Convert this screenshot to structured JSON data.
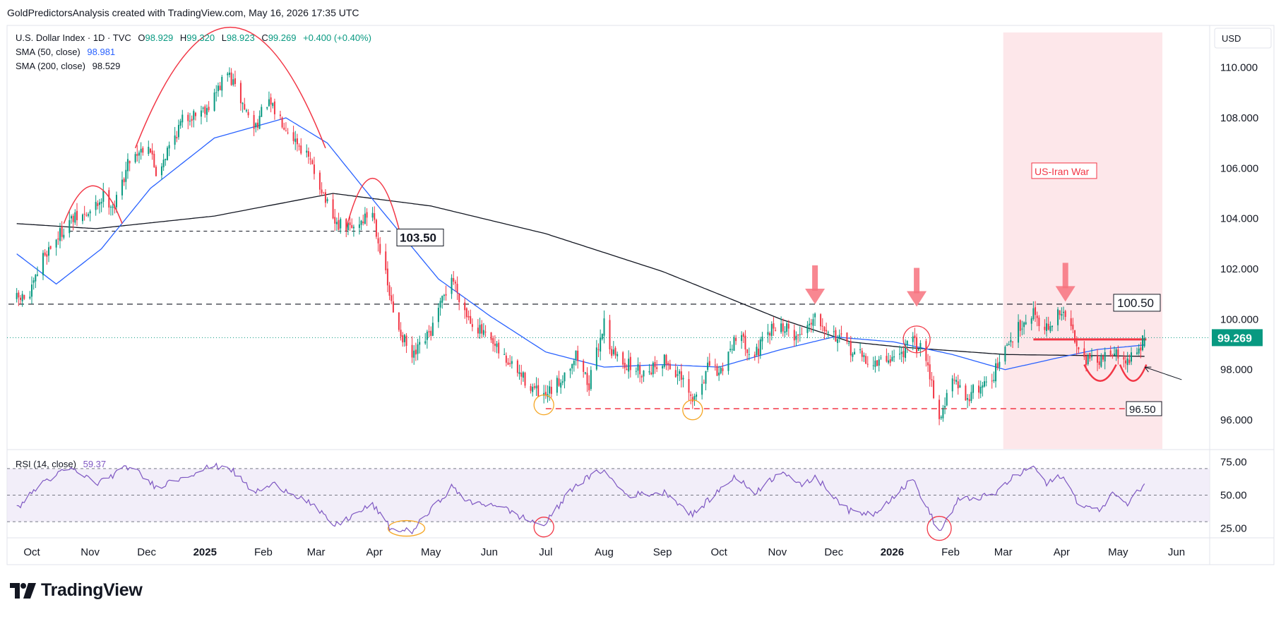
{
  "header": {
    "title": "GoldPredictorsAnalysis created with TradingView.com, May 16, 2026 17:35 UTC"
  },
  "legend": {
    "symbol": "U.S. Dollar Index · 1D · TVC",
    "ohlc": [
      {
        "label": "O",
        "value": "98.929"
      },
      {
        "label": "H",
        "value": "99.320"
      },
      {
        "label": "L",
        "value": "98.923"
      },
      {
        "label": "C",
        "value": "99.269"
      }
    ],
    "change": "+0.400 (+0.40%)",
    "sma50_label": "SMA (50, close)",
    "sma50_value": "98.981",
    "sma200_label": "SMA (200, close)",
    "sma200_value": "98.529",
    "rsi_label": "RSI (14, close)",
    "rsi_value": "59.37"
  },
  "currency_button": "USD",
  "logo_text": "TradingView",
  "annotations": {
    "level_high": "103.50",
    "level_mid": "100.50",
    "level_low": "96.50",
    "event_label": "US-Iran War",
    "current_price": "99.269"
  },
  "colors": {
    "up": "#089981",
    "down": "#f23645",
    "sma50": "#2962ff",
    "sma200": "#131722",
    "rsi": "#7e57c2",
    "arc": "#f23645",
    "marker_orange": "#f5a623",
    "event_zone": "#fde7ea"
  },
  "chart_data": [
    {
      "type": "candlestick",
      "title": "U.S. Dollar Index · 1D · TVC",
      "ylim": [
        95.3,
        111.0
      ],
      "yticks": [
        "110.000",
        "108.000",
        "106.000",
        "104.000",
        "102.000",
        "100.000",
        "98.000",
        "96.000"
      ],
      "x_axis_labels": [
        "Oct",
        "Nov",
        "Dec",
        "2025",
        "Feb",
        "Mar",
        "Apr",
        "May",
        "Jun",
        "Jul",
        "Aug",
        "Sep",
        "Oct",
        "Nov",
        "Dec",
        "2026",
        "Feb",
        "Mar",
        "Apr",
        "May",
        "Jun"
      ],
      "close_anchors": [
        {
          "date": "2024-09-23",
          "close": 100.8
        },
        {
          "date": "2024-09-30",
          "close": 100.9
        },
        {
          "date": "2024-10-07",
          "close": 102.5
        },
        {
          "date": "2024-10-21",
          "close": 103.9
        },
        {
          "date": "2024-11-01",
          "close": 104.2
        },
        {
          "date": "2024-11-08",
          "close": 104.9
        },
        {
          "date": "2024-11-14",
          "close": 104.5
        },
        {
          "date": "2024-11-22",
          "close": 106.4
        },
        {
          "date": "2024-12-02",
          "close": 107.0
        },
        {
          "date": "2024-12-06",
          "close": 105.8
        },
        {
          "date": "2024-12-20",
          "close": 107.9
        },
        {
          "date": "2025-01-03",
          "close": 108.5
        },
        {
          "date": "2025-01-13",
          "close": 109.8
        },
        {
          "date": "2025-01-27",
          "close": 107.6
        },
        {
          "date": "2025-02-03",
          "close": 108.6
        },
        {
          "date": "2025-02-12",
          "close": 107.8
        },
        {
          "date": "2025-02-24",
          "close": 106.5
        },
        {
          "date": "2025-03-04",
          "close": 105.2
        },
        {
          "date": "2025-03-10",
          "close": 103.8
        },
        {
          "date": "2025-03-20",
          "close": 103.6
        },
        {
          "date": "2025-03-31",
          "close": 104.3
        },
        {
          "date": "2025-04-04",
          "close": 102.8
        },
        {
          "date": "2025-04-11",
          "close": 100.2
        },
        {
          "date": "2025-04-21",
          "close": 98.4
        },
        {
          "date": "2025-05-01",
          "close": 99.5
        },
        {
          "date": "2025-05-12",
          "close": 101.7
        },
        {
          "date": "2025-05-20",
          "close": 100.2
        },
        {
          "date": "2025-06-02",
          "close": 99.0
        },
        {
          "date": "2025-06-16",
          "close": 97.9
        },
        {
          "date": "2025-06-30",
          "close": 96.8
        },
        {
          "date": "2025-07-08",
          "close": 97.5
        },
        {
          "date": "2025-07-17",
          "close": 98.6
        },
        {
          "date": "2025-07-24",
          "close": 97.4
        },
        {
          "date": "2025-08-01",
          "close": 99.9
        },
        {
          "date": "2025-08-05",
          "close": 98.7
        },
        {
          "date": "2025-08-13",
          "close": 98.2
        },
        {
          "date": "2025-08-22",
          "close": 97.9
        },
        {
          "date": "2025-09-02",
          "close": 98.4
        },
        {
          "date": "2025-09-10",
          "close": 97.7
        },
        {
          "date": "2025-09-17",
          "close": 96.7
        },
        {
          "date": "2025-09-26",
          "close": 98.2
        },
        {
          "date": "2025-10-01",
          "close": 97.8
        },
        {
          "date": "2025-10-10",
          "close": 99.4
        },
        {
          "date": "2025-10-20",
          "close": 98.6
        },
        {
          "date": "2025-10-31",
          "close": 99.8
        },
        {
          "date": "2025-11-06",
          "close": 99.6
        },
        {
          "date": "2025-11-12",
          "close": 99.3
        },
        {
          "date": "2025-11-21",
          "close": 100.2
        },
        {
          "date": "2025-12-01",
          "close": 99.4
        },
        {
          "date": "2025-12-10",
          "close": 98.8
        },
        {
          "date": "2025-12-22",
          "close": 98.2
        },
        {
          "date": "2026-01-05",
          "close": 98.6
        },
        {
          "date": "2026-01-12",
          "close": 99.1
        },
        {
          "date": "2026-01-19",
          "close": 98.6
        },
        {
          "date": "2026-01-26",
          "close": 96.0
        },
        {
          "date": "2026-02-02",
          "close": 97.6
        },
        {
          "date": "2026-02-09",
          "close": 96.9
        },
        {
          "date": "2026-02-23",
          "close": 97.7
        },
        {
          "date": "2026-03-03",
          "close": 98.9
        },
        {
          "date": "2026-03-10",
          "close": 99.8
        },
        {
          "date": "2026-03-17",
          "close": 100.3
        },
        {
          "date": "2026-03-24",
          "close": 99.6
        },
        {
          "date": "2026-04-01",
          "close": 100.3
        },
        {
          "date": "2026-04-07",
          "close": 99.5
        },
        {
          "date": "2026-04-13",
          "close": 98.5
        },
        {
          "date": "2026-04-20",
          "close": 98.2
        },
        {
          "date": "2026-04-27",
          "close": 98.8
        },
        {
          "date": "2026-05-04",
          "close": 98.3
        },
        {
          "date": "2026-05-11",
          "close": 98.6
        },
        {
          "date": "2026-05-15",
          "close": 99.27
        }
      ],
      "sma50_anchors": [
        {
          "date": "2024-09-23",
          "value": 102.6
        },
        {
          "date": "2024-10-14",
          "value": 101.4
        },
        {
          "date": "2024-11-07",
          "value": 102.8
        },
        {
          "date": "2024-12-03",
          "value": 105.2
        },
        {
          "date": "2025-01-06",
          "value": 107.2
        },
        {
          "date": "2025-02-13",
          "value": 108.0
        },
        {
          "date": "2025-03-07",
          "value": 107.0
        },
        {
          "date": "2025-04-04",
          "value": 104.4
        },
        {
          "date": "2025-05-05",
          "value": 101.6
        },
        {
          "date": "2025-06-02",
          "value": 100.1
        },
        {
          "date": "2025-07-01",
          "value": 98.7
        },
        {
          "date": "2025-08-01",
          "value": 98.1
        },
        {
          "date": "2025-09-01",
          "value": 98.2
        },
        {
          "date": "2025-10-01",
          "value": 98.1
        },
        {
          "date": "2025-11-03",
          "value": 98.8
        },
        {
          "date": "2025-12-01",
          "value": 99.3
        },
        {
          "date": "2026-01-02",
          "value": 99.1
        },
        {
          "date": "2026-02-02",
          "value": 98.6
        },
        {
          "date": "2026-03-02",
          "value": 98.0
        },
        {
          "date": "2026-04-01",
          "value": 98.5
        },
        {
          "date": "2026-04-20",
          "value": 98.8
        },
        {
          "date": "2026-05-15",
          "value": 98.98
        }
      ],
      "sma200_anchors": [
        {
          "date": "2024-09-23",
          "value": 103.8
        },
        {
          "date": "2024-11-04",
          "value": 103.6
        },
        {
          "date": "2025-01-06",
          "value": 104.1
        },
        {
          "date": "2025-03-10",
          "value": 105.0
        },
        {
          "date": "2025-05-01",
          "value": 104.5
        },
        {
          "date": "2025-07-01",
          "value": 103.4
        },
        {
          "date": "2025-09-01",
          "value": 101.9
        },
        {
          "date": "2025-11-03",
          "value": 100.0
        },
        {
          "date": "2025-12-10",
          "value": 99.1
        },
        {
          "date": "2026-01-05",
          "value": 98.9
        },
        {
          "date": "2026-03-02",
          "value": 98.6
        },
        {
          "date": "2026-05-15",
          "value": 98.53
        }
      ]
    },
    {
      "type": "line",
      "title": "RSI (14, close)",
      "ylim": [
        20,
        80
      ],
      "yticks": [
        "75.00",
        "50.00",
        "25.00"
      ],
      "levels": [
        70,
        50,
        30
      ],
      "rsi_anchors": [
        {
          "date": "2024-09-23",
          "value": 40
        },
        {
          "date": "2024-10-07",
          "value": 60
        },
        {
          "date": "2024-10-21",
          "value": 70
        },
        {
          "date": "2024-11-05",
          "value": 59
        },
        {
          "date": "2024-11-22",
          "value": 72
        },
        {
          "date": "2024-12-06",
          "value": 56
        },
        {
          "date": "2025-01-03",
          "value": 71
        },
        {
          "date": "2025-01-13",
          "value": 72
        },
        {
          "date": "2025-01-27",
          "value": 52
        },
        {
          "date": "2025-02-07",
          "value": 58
        },
        {
          "date": "2025-02-24",
          "value": 46
        },
        {
          "date": "2025-03-11",
          "value": 27
        },
        {
          "date": "2025-03-31",
          "value": 43
        },
        {
          "date": "2025-04-10",
          "value": 24
        },
        {
          "date": "2025-04-21",
          "value": 23
        },
        {
          "date": "2025-05-12",
          "value": 56
        },
        {
          "date": "2025-05-22",
          "value": 44
        },
        {
          "date": "2025-06-05",
          "value": 43
        },
        {
          "date": "2025-06-17",
          "value": 34
        },
        {
          "date": "2025-06-30",
          "value": 27
        },
        {
          "date": "2025-07-16",
          "value": 57
        },
        {
          "date": "2025-07-31",
          "value": 69
        },
        {
          "date": "2025-08-13",
          "value": 50
        },
        {
          "date": "2025-09-03",
          "value": 52
        },
        {
          "date": "2025-09-17",
          "value": 35
        },
        {
          "date": "2025-10-09",
          "value": 64
        },
        {
          "date": "2025-10-20",
          "value": 52
        },
        {
          "date": "2025-11-04",
          "value": 69
        },
        {
          "date": "2025-11-14",
          "value": 56
        },
        {
          "date": "2025-11-21",
          "value": 64
        },
        {
          "date": "2025-12-09",
          "value": 38
        },
        {
          "date": "2025-12-22",
          "value": 36
        },
        {
          "date": "2026-01-12",
          "value": 62
        },
        {
          "date": "2026-01-26",
          "value": 22
        },
        {
          "date": "2026-02-05",
          "value": 46
        },
        {
          "date": "2026-02-24",
          "value": 50
        },
        {
          "date": "2026-03-05",
          "value": 62
        },
        {
          "date": "2026-03-17",
          "value": 72
        },
        {
          "date": "2026-03-24",
          "value": 58
        },
        {
          "date": "2026-04-01",
          "value": 65
        },
        {
          "date": "2026-04-10",
          "value": 44
        },
        {
          "date": "2026-04-20",
          "value": 38
        },
        {
          "date": "2026-04-29",
          "value": 52
        },
        {
          "date": "2026-05-06",
          "value": 42
        },
        {
          "date": "2026-05-15",
          "value": 59.37
        }
      ]
    }
  ]
}
